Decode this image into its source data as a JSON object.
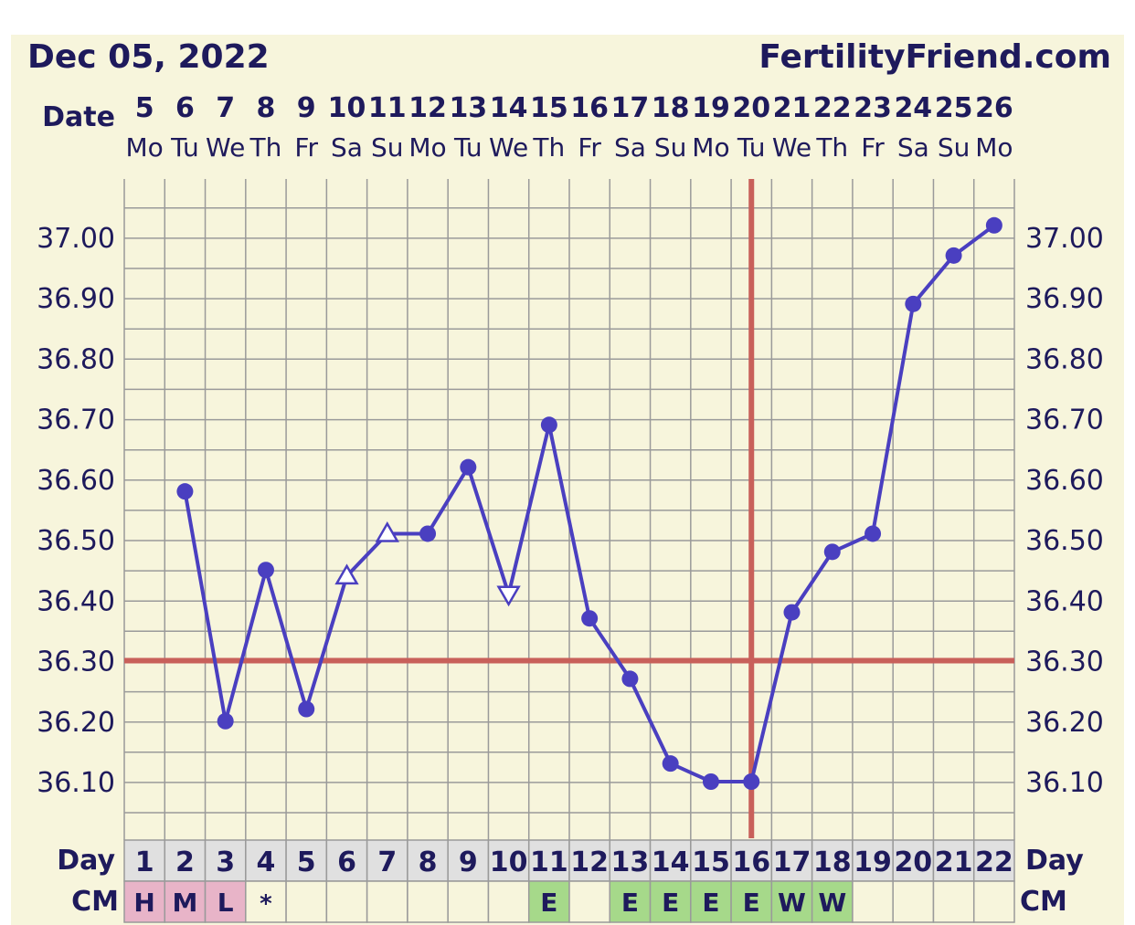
{
  "header": {
    "date_title": "Dec 05, 2022",
    "site": "FertilityFriend.com",
    "date_label": "Date",
    "day_label": "Day",
    "cm_label": "CM"
  },
  "colors": {
    "background": "#f7f5dc",
    "grid": "#9a9a9a",
    "line": "#4a3fc0",
    "coverline": "#c8605a",
    "menses_cell": "#e8b4c8",
    "fertile_cell": "#a6d98a",
    "day_row": "#e0e0e0"
  },
  "chart_data": {
    "type": "line",
    "title": "",
    "x": [
      "5",
      "6",
      "7",
      "8",
      "9",
      "10",
      "11",
      "12",
      "13",
      "14",
      "15",
      "16",
      "17",
      "18",
      "19",
      "20",
      "21",
      "22",
      "23",
      "24",
      "25",
      "26"
    ],
    "weekdays": [
      "Mo",
      "Tu",
      "We",
      "Th",
      "Fr",
      "Sa",
      "Su",
      "Mo",
      "Tu",
      "We",
      "Th",
      "Fr",
      "Sa",
      "Su",
      "Mo",
      "Tu",
      "We",
      "Th",
      "Fr",
      "Sa",
      "Su",
      "Mo"
    ],
    "cycle_days": [
      "1",
      "2",
      "3",
      "4",
      "5",
      "6",
      "7",
      "8",
      "9",
      "10",
      "11",
      "12",
      "13",
      "14",
      "15",
      "16",
      "17",
      "18",
      "19",
      "20",
      "21",
      "22"
    ],
    "cm": [
      "H",
      "M",
      "L",
      "*",
      "",
      "",
      "",
      "",
      "",
      "",
      "E",
      "",
      "E",
      "E",
      "E",
      "E",
      "W",
      "W",
      "",
      "",
      "",
      ""
    ],
    "series": [
      {
        "values": [
          null,
          36.58,
          36.2,
          36.45,
          36.22,
          36.44,
          36.51,
          36.51,
          36.62,
          36.41,
          36.69,
          36.37,
          36.27,
          36.13,
          36.1,
          36.1,
          36.38,
          36.48,
          36.51,
          36.89,
          36.97,
          37.02
        ],
        "markers": [
          "",
          "dot",
          "dot",
          "dot",
          "dot",
          "triangle-up",
          "triangle-up",
          "dot",
          "dot",
          "triangle-down",
          "dot",
          "dot",
          "dot",
          "dot",
          "dot",
          "dot",
          "dot",
          "dot",
          "dot",
          "dot",
          "dot",
          "dot"
        ]
      }
    ],
    "y_ticks": [
      "36.10",
      "36.20",
      "36.30",
      "36.40",
      "36.50",
      "36.60",
      "36.70",
      "36.80",
      "36.90",
      "37.00"
    ],
    "ylim": [
      36.02,
      37.1
    ],
    "coverline": 36.3,
    "ovulation_day": "16",
    "grid": true
  }
}
